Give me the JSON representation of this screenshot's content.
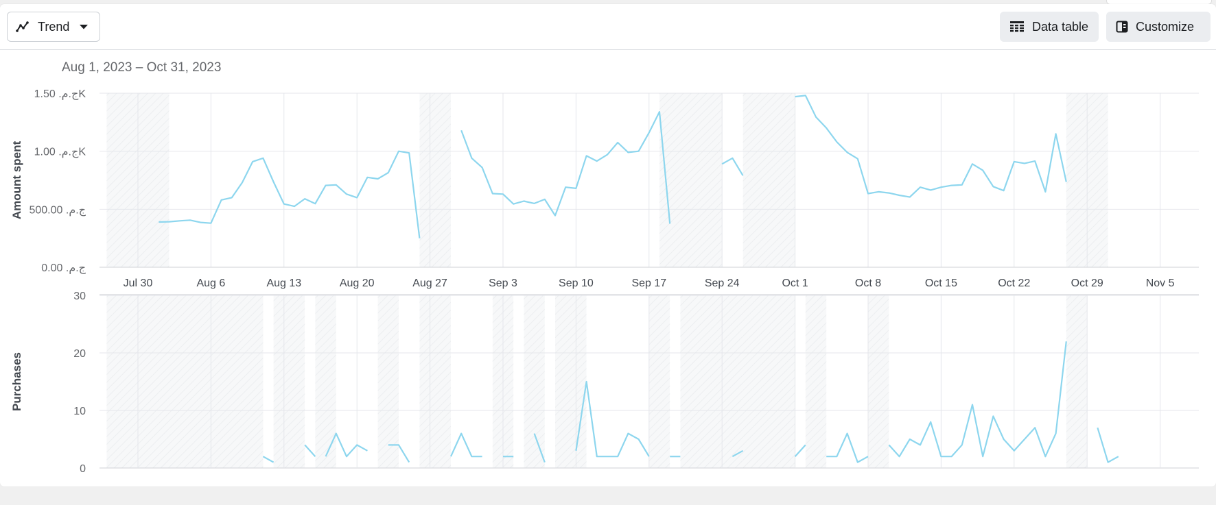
{
  "toolbar": {
    "trend_label": "Trend",
    "data_table_label": "Data table",
    "customize_label": "Customize"
  },
  "date_range": "Aug 1, 2023 – Oct 31, 2023",
  "colors": {
    "line": "#8dd6ee",
    "grid": "#e4e6eb",
    "axis": "#cfd2d6",
    "text": "#65676b",
    "ylabel": "#444950"
  },
  "chart_data": [
    {
      "type": "line",
      "ylabel": "Amount spent",
      "ylim": [
        0,
        1500
      ],
      "yticks": [
        0,
        500,
        1000,
        1500
      ],
      "ytick_labels": [
        "0.00 .ج.م",
        "500.00 .ج.م",
        "1.00 .ج.مK",
        "1.50 .ج.مK"
      ],
      "x_range": [
        "2023-07-27",
        "2023-11-08"
      ],
      "xticks": [
        "2023-07-30",
        "2023-08-06",
        "2023-08-13",
        "2023-08-20",
        "2023-08-27",
        "2023-09-03",
        "2023-09-10",
        "2023-09-17",
        "2023-09-24",
        "2023-10-01",
        "2023-10-08",
        "2023-10-15",
        "2023-10-22",
        "2023-10-29",
        "2023-11-05"
      ],
      "xtick_labels": [
        "Jul 30",
        "Aug 6",
        "Aug 13",
        "Aug 20",
        "Aug 27",
        "Sep 3",
        "Sep 10",
        "Sep 17",
        "Sep 24",
        "Oct 1",
        "Oct 8",
        "Oct 15",
        "Oct 22",
        "Oct 29",
        "Nov 5"
      ],
      "shaded_ranges": [
        [
          "2023-07-27",
          "2023-08-02"
        ],
        [
          "2023-08-26",
          "2023-08-29"
        ],
        [
          "2023-09-18",
          "2023-09-24"
        ],
        [
          "2023-09-26",
          "2023-10-01"
        ],
        [
          "2023-10-27",
          "2023-10-31"
        ]
      ],
      "series": [
        {
          "segments": [
            {
              "start": "2023-08-01",
              "values": [
                390,
                392,
                400,
                406,
                386,
                380,
                580,
                600,
                730,
                910,
                940,
                735,
                545,
                525,
                590,
                548,
                705,
                710,
                630,
                600,
                775,
                762,
                815,
                1000,
                985,
                250
              ]
            },
            {
              "start": "2023-08-30",
              "values": [
                1180,
                940,
                860,
                635,
                630,
                545,
                570,
                550,
                585,
                445,
                690,
                680,
                960,
                915,
                970,
                1075,
                990,
                1000,
                1160,
                1340,
                375
              ]
            },
            {
              "start": "2023-09-24",
              "values": [
                890,
                940,
                790
              ]
            },
            {
              "start": "2023-10-01",
              "values": [
                1470,
                1480,
                1295,
                1200,
                1080,
                990,
                935,
                635,
                650,
                640,
                620,
                605,
                690,
                665,
                690,
                705,
                710,
                890,
                835,
                695,
                660,
                910,
                895,
                915,
                650,
                1150,
                735
              ]
            }
          ]
        }
      ]
    },
    {
      "type": "line",
      "ylabel": "Purchases",
      "ylim": [
        0,
        30
      ],
      "yticks": [
        0,
        10,
        20,
        30
      ],
      "ytick_labels": [
        "0",
        "10",
        "20",
        "30"
      ],
      "x_range": [
        "2023-07-27",
        "2023-11-08"
      ],
      "shaded_ranges": [
        [
          "2023-07-27",
          "2023-08-11"
        ],
        [
          "2023-08-12",
          "2023-08-15"
        ],
        [
          "2023-08-16",
          "2023-08-18"
        ],
        [
          "2023-08-22",
          "2023-08-24"
        ],
        [
          "2023-08-26",
          "2023-08-29"
        ],
        [
          "2023-09-02",
          "2023-09-04"
        ],
        [
          "2023-09-05",
          "2023-09-07"
        ],
        [
          "2023-09-08",
          "2023-09-11"
        ],
        [
          "2023-09-17",
          "2023-09-19"
        ],
        [
          "2023-09-20",
          "2023-09-26"
        ],
        [
          "2023-09-26",
          "2023-10-01"
        ],
        [
          "2023-10-02",
          "2023-10-04"
        ],
        [
          "2023-10-08",
          "2023-10-10"
        ],
        [
          "2023-10-27",
          "2023-10-29"
        ]
      ],
      "series": [
        {
          "segments": [
            {
              "start": "2023-08-11",
              "values": [
                2,
                1
              ]
            },
            {
              "start": "2023-08-15",
              "values": [
                4,
                2
              ]
            },
            {
              "start": "2023-08-17",
              "values": [
                2,
                6,
                2,
                4,
                3
              ]
            },
            {
              "start": "2023-08-23",
              "values": [
                4,
                4,
                1
              ]
            },
            {
              "start": "2023-08-29",
              "values": [
                2,
                6,
                2,
                2
              ]
            },
            {
              "start": "2023-09-03",
              "values": [
                2,
                2
              ]
            },
            {
              "start": "2023-09-06",
              "values": [
                6,
                1
              ]
            },
            {
              "start": "2023-09-10",
              "values": [
                3,
                15,
                2,
                2,
                2,
                6,
                5,
                2
              ]
            },
            {
              "start": "2023-09-19",
              "values": [
                2,
                2
              ]
            },
            {
              "start": "2023-09-25",
              "values": [
                2,
                3
              ]
            },
            {
              "start": "2023-10-01",
              "values": [
                2,
                4
              ]
            },
            {
              "start": "2023-10-04",
              "values": [
                2,
                2,
                6,
                1,
                2
              ]
            },
            {
              "start": "2023-10-10",
              "values": [
                4,
                2,
                5,
                4,
                8,
                2,
                2,
                4,
                11,
                2,
                9,
                5,
                3,
                5,
                7,
                2,
                6,
                22
              ]
            },
            {
              "start": "2023-10-30",
              "values": [
                7,
                1,
                2
              ]
            }
          ]
        }
      ]
    }
  ]
}
